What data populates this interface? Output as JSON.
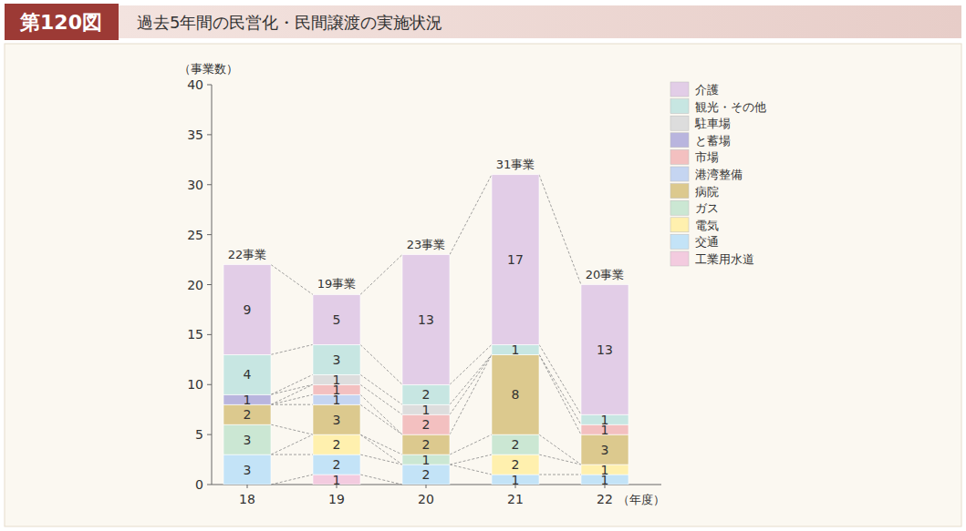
{
  "chart_data": {
    "type": "bar",
    "stacked": true,
    "data_labels": true,
    "grid": false,
    "legend": "top-right",
    "figure_number": "第120図",
    "title": "過去5年間の民営化・民間譲渡の実施状況",
    "y_label": "（事業数）",
    "x_label": "（年度）",
    "categories": [
      "18",
      "19",
      "20",
      "21",
      "22"
    ],
    "total_labels": [
      "22事業",
      "19事業",
      "23事業",
      "31事業",
      "20事業"
    ],
    "ylim": [
      0,
      40
    ],
    "yticks": [
      0,
      5,
      10,
      15,
      20,
      25,
      30,
      35,
      40
    ],
    "series": [
      {
        "name": "工業用水道",
        "color": "#f3cbdf",
        "values": [
          0,
          1,
          0,
          0,
          0
        ]
      },
      {
        "name": "交通",
        "color": "#c3e3f7",
        "values": [
          3,
          2,
          2,
          1,
          1
        ]
      },
      {
        "name": "電気",
        "color": "#fff0ae",
        "values": [
          0,
          2,
          0,
          2,
          1
        ]
      },
      {
        "name": "ガス",
        "color": "#cbe7d3",
        "values": [
          3,
          0,
          1,
          2,
          0
        ]
      },
      {
        "name": "病院",
        "color": "#dcc98e",
        "values": [
          2,
          3,
          2,
          8,
          3
        ]
      },
      {
        "name": "港湾整備",
        "color": "#c5d5f1",
        "values": [
          0,
          1,
          0,
          0,
          0
        ]
      },
      {
        "name": "市場",
        "color": "#f3c0c0",
        "values": [
          0,
          1,
          2,
          0,
          1
        ]
      },
      {
        "name": "と蓄場",
        "color": "#b9b5de",
        "values": [
          1,
          0,
          0,
          0,
          0
        ]
      },
      {
        "name": "駐車場",
        "color": "#dddddd",
        "values": [
          0,
          1,
          1,
          0,
          0
        ]
      },
      {
        "name": "観光・その他",
        "color": "#c7e6e2",
        "values": [
          4,
          3,
          2,
          1,
          1
        ]
      },
      {
        "name": "介護",
        "color": "#e2cde7",
        "values": [
          9,
          5,
          13,
          17,
          13
        ]
      }
    ]
  }
}
